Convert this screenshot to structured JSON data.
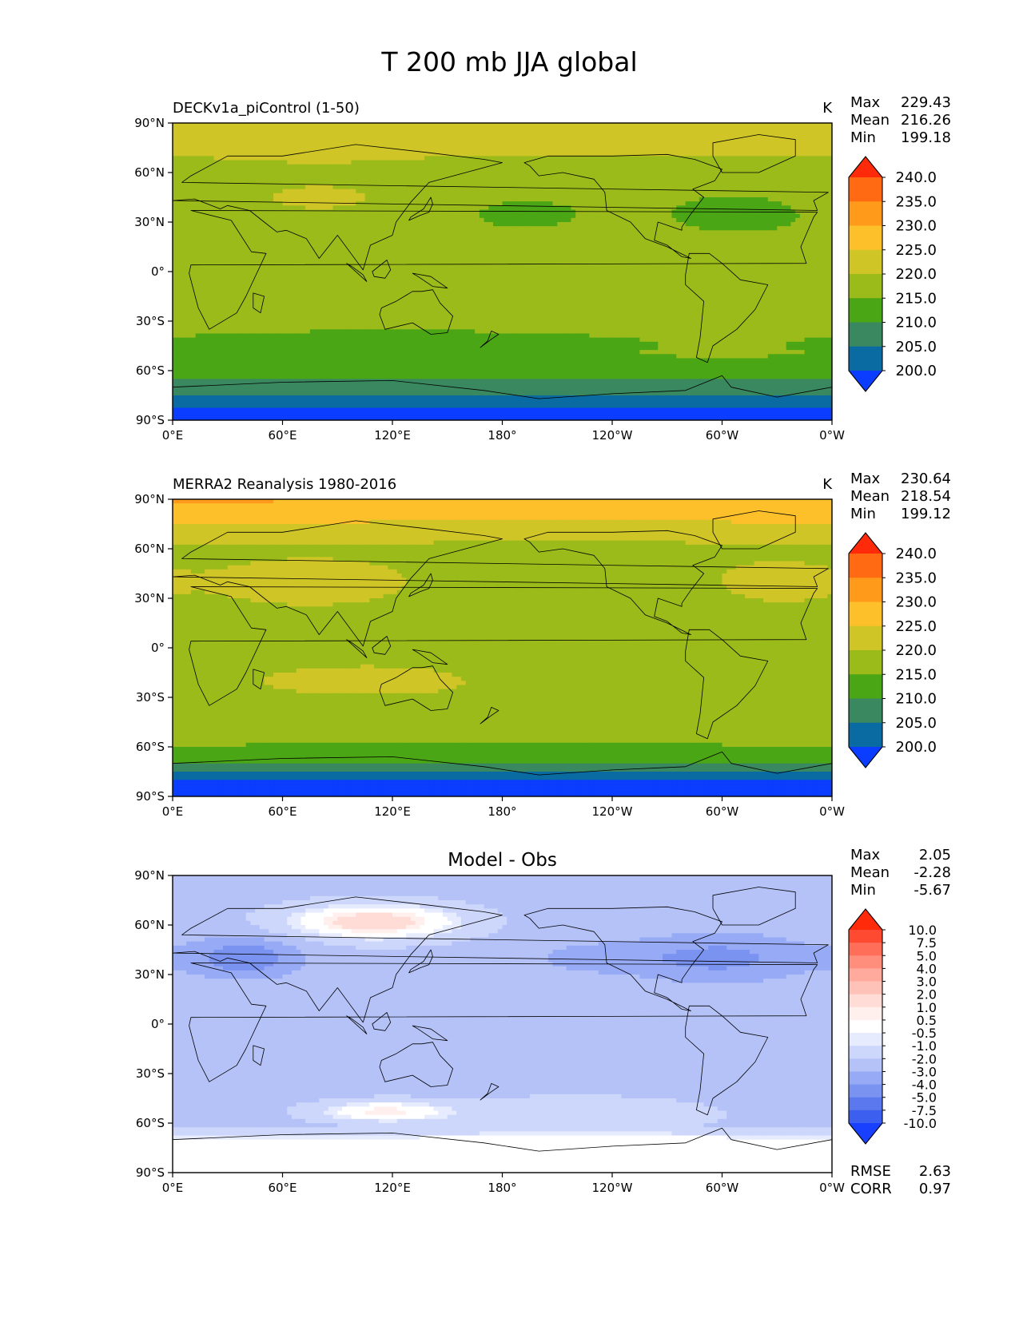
{
  "figure": {
    "title": "T 200 mb JJA global",
    "x_ticks": [
      "0°E",
      "60°E",
      "120°E",
      "180°",
      "120°W",
      "60°W",
      "0°W"
    ],
    "y_ticks": [
      "90°N",
      "60°N",
      "30°N",
      "0°",
      "30°S",
      "60°S",
      "90°S"
    ]
  },
  "panels": [
    {
      "id": "model",
      "title_left": "DECKv1a_piControl (1-50)",
      "title_center": "",
      "units": "K",
      "stats": [
        {
          "label": "Max",
          "value": "229.43"
        },
        {
          "label": "Mean",
          "value": "216.26"
        },
        {
          "label": "Min",
          "value": "199.18"
        }
      ],
      "colorbar": {
        "labels": [
          "240.0",
          "235.0",
          "230.0",
          "225.0",
          "220.0",
          "215.0",
          "210.0",
          "205.0",
          "200.0"
        ],
        "colors": [
          "#ff2a0a",
          "#ff6a12",
          "#ff9a1a",
          "#fdc02a",
          "#d0c526",
          "#9bbb1a",
          "#4aa614",
          "#3a8860",
          "#0a6aa2",
          "#0a3dff"
        ]
      }
    },
    {
      "id": "obs",
      "title_left": "MERRA2 Reanalysis 1980-2016",
      "title_center": "",
      "units": "K",
      "stats": [
        {
          "label": "Max",
          "value": "230.64"
        },
        {
          "label": "Mean",
          "value": "218.54"
        },
        {
          "label": "Min",
          "value": "199.12"
        }
      ],
      "colorbar": {
        "labels": [
          "240.0",
          "235.0",
          "230.0",
          "225.0",
          "220.0",
          "215.0",
          "210.0",
          "205.0",
          "200.0"
        ],
        "colors": [
          "#ff2a0a",
          "#ff6a12",
          "#ff9a1a",
          "#fdc02a",
          "#d0c526",
          "#9bbb1a",
          "#4aa614",
          "#3a8860",
          "#0a6aa2",
          "#0a3dff"
        ]
      }
    },
    {
      "id": "diff",
      "title_left": "",
      "title_center": "Model - Obs",
      "units": "",
      "stats": [
        {
          "label": "Max",
          "value": "2.05"
        },
        {
          "label": "Mean",
          "value": "-2.28"
        },
        {
          "label": "Min",
          "value": "-5.67"
        }
      ],
      "colorbar": {
        "labels": [
          "10.0",
          "7.5",
          "5.0",
          "4.0",
          "3.0",
          "2.0",
          "1.0",
          "0.5",
          "-0.5",
          "-1.0",
          "-2.0",
          "-3.0",
          "-4.0",
          "-5.0",
          "-7.5",
          "-10.0"
        ],
        "colors": [
          "#ff2a0a",
          "#ff4a32",
          "#ff6e58",
          "#ff8e7c",
          "#ffaa9c",
          "#ffc2b8",
          "#ffdcd6",
          "#fff0ee",
          "#ffffff",
          "#e6ebfd",
          "#cdd6fb",
          "#b4c2f8",
          "#97aaf5",
          "#7a93f1",
          "#5b78ee",
          "#3d5ff0",
          "#1a40ff"
        ]
      },
      "footer_stats": [
        {
          "label": "RMSE",
          "value": "2.63"
        },
        {
          "label": "CORR",
          "value": "0.97"
        }
      ]
    }
  ]
}
